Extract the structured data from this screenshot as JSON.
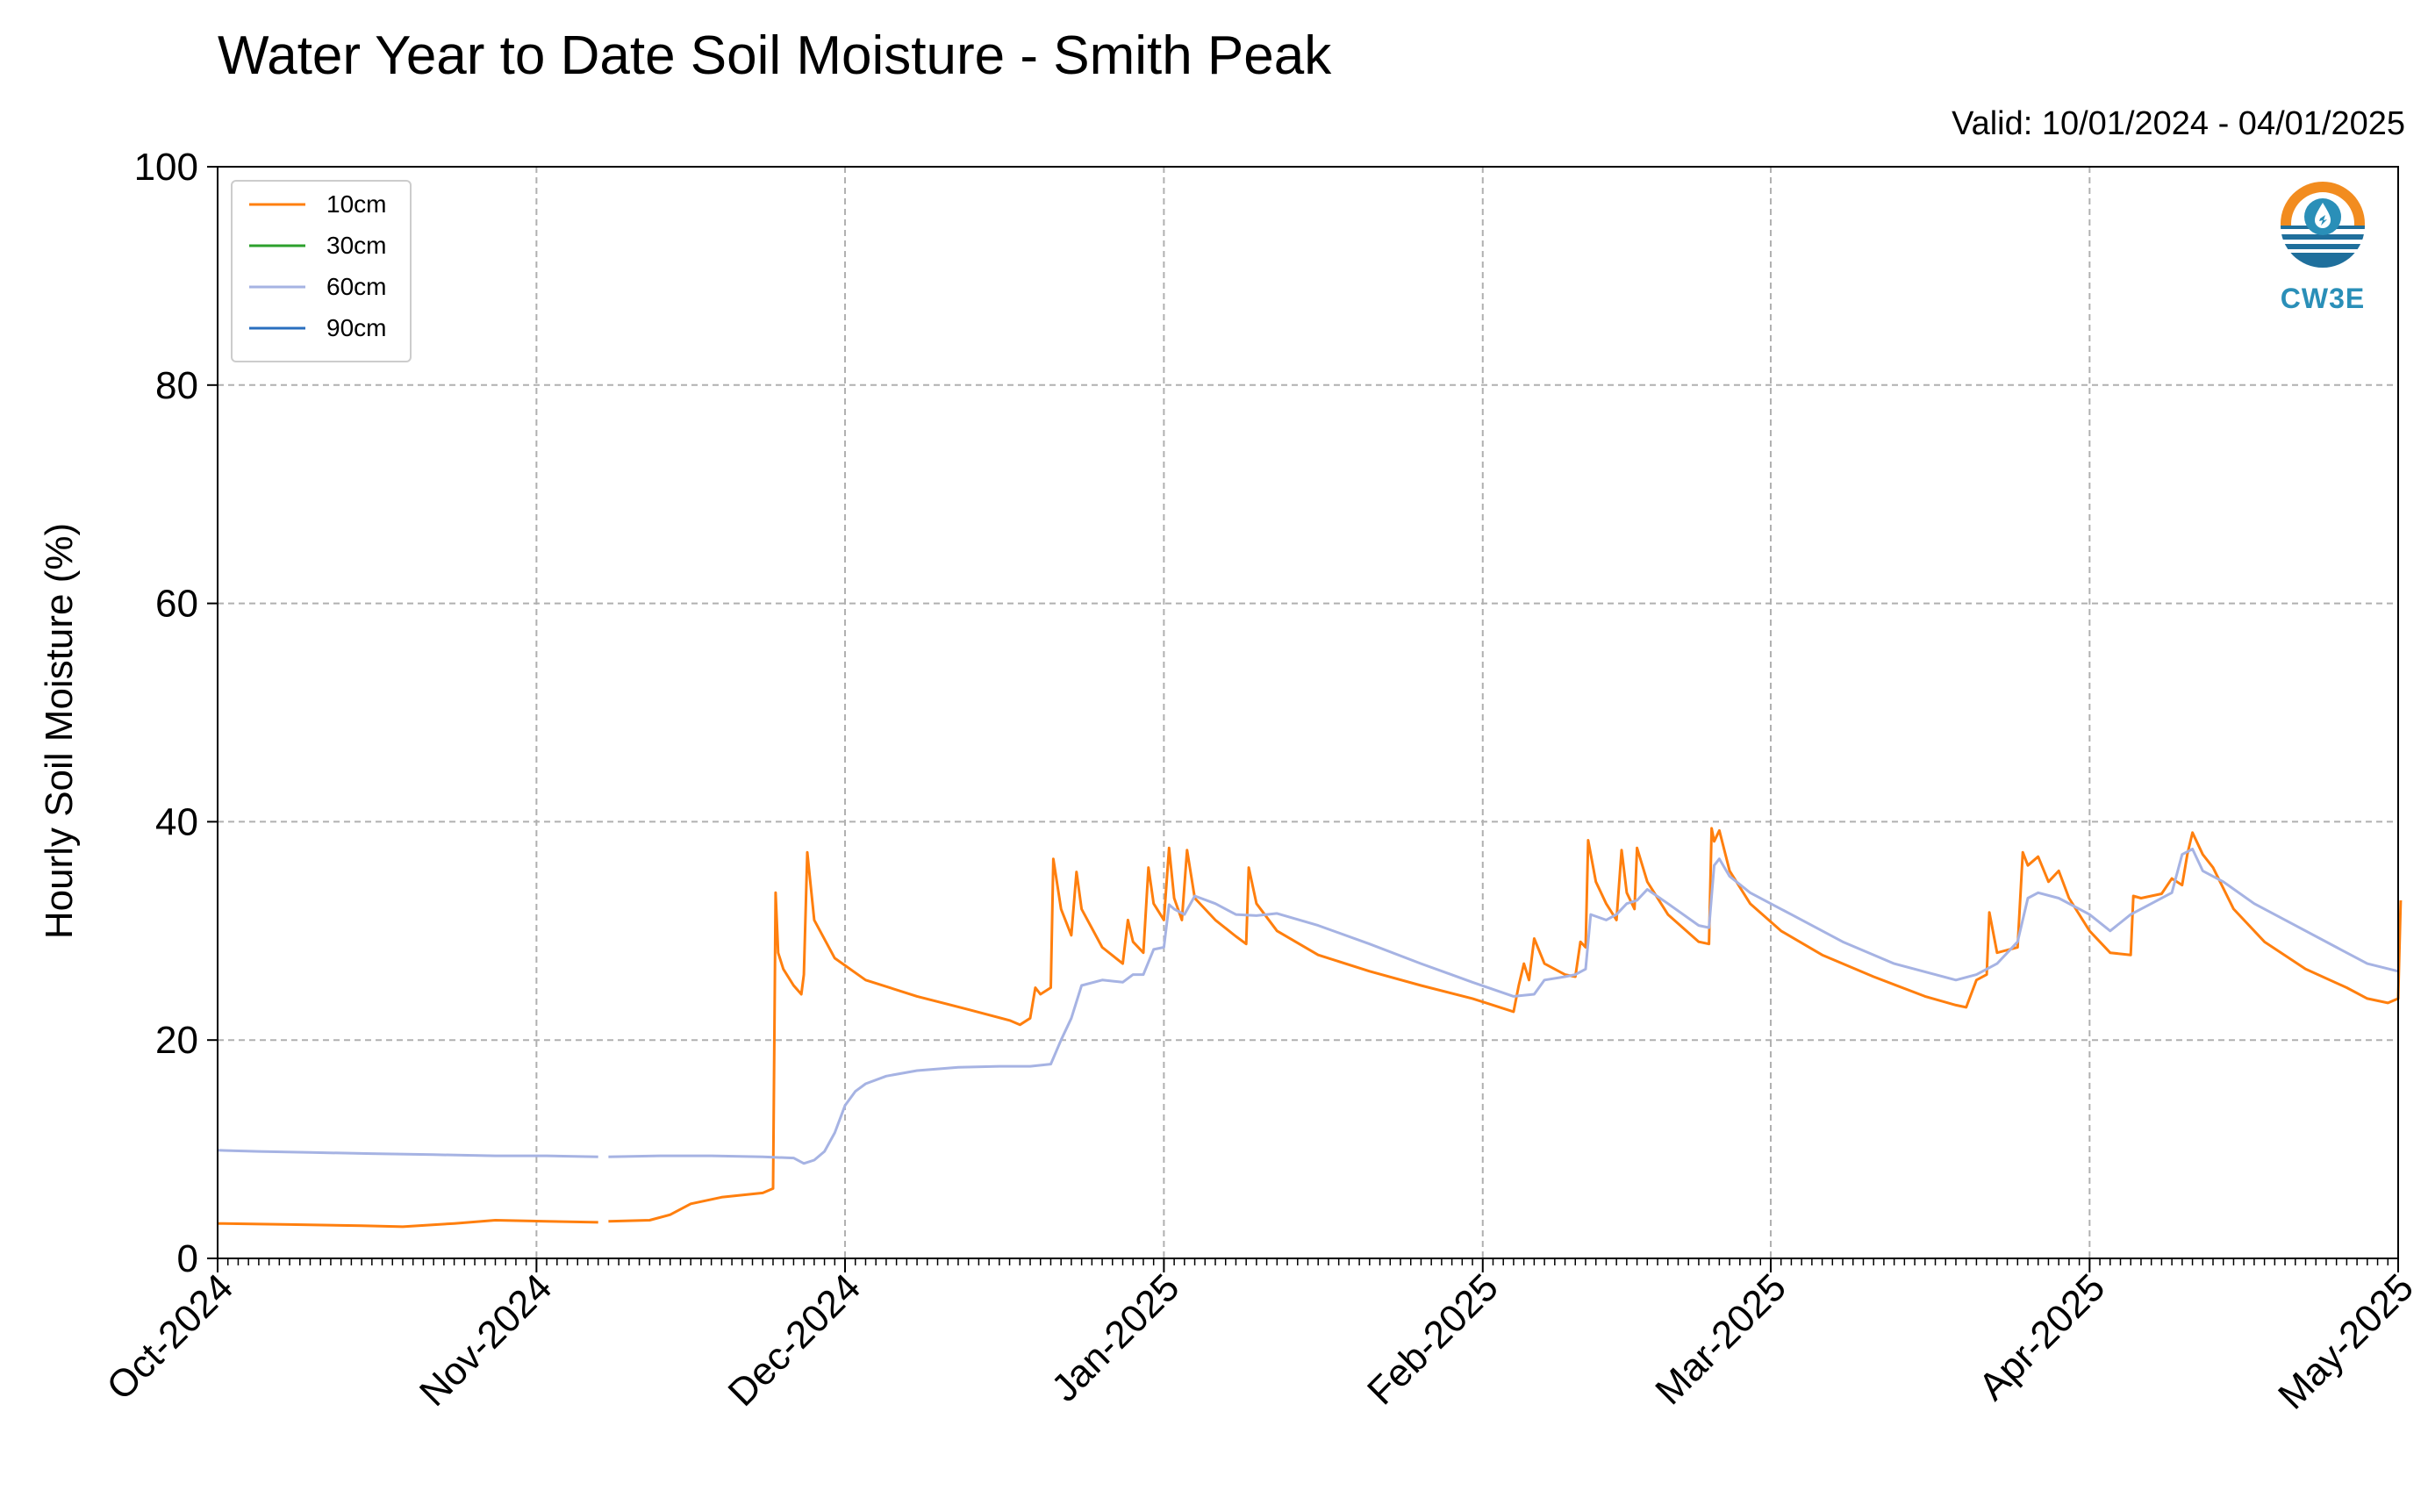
{
  "header": {
    "title": "Water Year to Date Soil Moisture - Smith Peak",
    "valid": "Valid: 10/01/2024 - 04/01/2025"
  },
  "logo": {
    "text": "CW3E"
  },
  "chart_data": {
    "type": "line",
    "title": "Water Year to Date Soil Moisture - Smith Peak",
    "ylabel": "Hourly Soil Moisture (%)",
    "xlabel": "",
    "ylim": [
      0,
      100
    ],
    "yticks": [
      "0",
      "20",
      "40",
      "60",
      "80",
      "100"
    ],
    "xlim": [
      "2024-10-01",
      "2025-05-01"
    ],
    "xticks": [
      {
        "date": "2024-10-01",
        "label": "Oct-2024"
      },
      {
        "date": "2024-11-01",
        "label": "Nov-2024"
      },
      {
        "date": "2024-12-01",
        "label": "Dec-2024"
      },
      {
        "date": "2025-01-01",
        "label": "Jan-2025"
      },
      {
        "date": "2025-02-01",
        "label": "Feb-2025"
      },
      {
        "date": "2025-03-01",
        "label": "Mar-2025"
      },
      {
        "date": "2025-04-01",
        "label": "Apr-2025"
      },
      {
        "date": "2025-05-01",
        "label": "May-2025"
      }
    ],
    "grid": true,
    "legend_position": "top-left",
    "series": [
      {
        "name": "10cm",
        "color": "#ff7f0e",
        "segments": [
          [
            [
              "2024-10-01",
              3.2
            ],
            [
              "2024-10-08",
              3.1
            ],
            [
              "2024-10-15",
              3.0
            ],
            [
              "2024-10-19",
              2.9
            ],
            [
              "2024-10-24",
              3.2
            ],
            [
              "2024-10-28",
              3.5
            ],
            [
              "2024-11-02",
              3.4
            ],
            [
              "2024-11-07",
              3.3
            ]
          ],
          [
            [
              "2024-11-08",
              3.4
            ],
            [
              "2024-11-12",
              3.5
            ],
            [
              "2024-11-14",
              4.0
            ],
            [
              "2024-11-16",
              5.0
            ],
            [
              "2024-11-19",
              5.6
            ],
            [
              "2024-11-23",
              6.0
            ],
            [
              "2024-11-24",
              6.4
            ],
            [
              "2024-11-24 06:00",
              33.5
            ],
            [
              "2024-11-24 12:00",
              28.0
            ],
            [
              "2024-11-25",
              26.5
            ],
            [
              "2024-11-26",
              25.0
            ],
            [
              "2024-11-26 18:00",
              24.2
            ],
            [
              "2024-11-27",
              26.0
            ],
            [
              "2024-11-27 08:00",
              37.2
            ],
            [
              "2024-11-28",
              31.0
            ],
            [
              "2024-11-30",
              27.5
            ],
            [
              "2024-12-03",
              25.5
            ],
            [
              "2024-12-08",
              24.0
            ],
            [
              "2024-12-13",
              22.8
            ],
            [
              "2024-12-17",
              21.8
            ],
            [
              "2024-12-18",
              21.4
            ],
            [
              "2024-12-19",
              22.0
            ],
            [
              "2024-12-19 12:00",
              24.8
            ],
            [
              "2024-12-20",
              24.2
            ],
            [
              "2024-12-21",
              24.8
            ],
            [
              "2024-12-21 06:00",
              36.6
            ],
            [
              "2024-12-22",
              32.0
            ],
            [
              "2024-12-23",
              29.6
            ],
            [
              "2024-12-23 12:00",
              35.4
            ],
            [
              "2024-12-24",
              32.0
            ],
            [
              "2024-12-26",
              28.5
            ],
            [
              "2024-12-28",
              27.0
            ],
            [
              "2024-12-28 12:00",
              31.0
            ],
            [
              "2024-12-29",
              29.0
            ],
            [
              "2024-12-30",
              28.0
            ],
            [
              "2024-12-30 12:00",
              35.8
            ],
            [
              "2024-12-31",
              32.5
            ],
            [
              "2025-01-01",
              31.0
            ],
            [
              "2025-01-01 12:00",
              37.6
            ],
            [
              "2025-01-02",
              33.0
            ],
            [
              "2025-01-02 18:00",
              31.0
            ],
            [
              "2025-01-03 06:00",
              37.4
            ],
            [
              "2025-01-04",
              33.0
            ],
            [
              "2025-01-06",
              31.0
            ],
            [
              "2025-01-08",
              29.5
            ],
            [
              "2025-01-09",
              28.8
            ],
            [
              "2025-01-09 06:00",
              35.8
            ],
            [
              "2025-01-10",
              32.5
            ],
            [
              "2025-01-12",
              30.0
            ],
            [
              "2025-01-16",
              27.8
            ],
            [
              "2025-01-21",
              26.3
            ],
            [
              "2025-01-26",
              25.0
            ],
            [
              "2025-01-31",
              23.8
            ],
            [
              "2025-02-04",
              22.6
            ],
            [
              "2025-02-04 12:00",
              25.0
            ],
            [
              "2025-02-05",
              27.0
            ],
            [
              "2025-02-05 12:00",
              25.5
            ],
            [
              "2025-02-06",
              29.3
            ],
            [
              "2025-02-07",
              27.0
            ],
            [
              "2025-02-09",
              26.0
            ],
            [
              "2025-02-10",
              25.8
            ],
            [
              "2025-02-10 12:00",
              29.0
            ],
            [
              "2025-02-11",
              28.5
            ],
            [
              "2025-02-11 06:00",
              38.3
            ],
            [
              "2025-02-12",
              34.5
            ],
            [
              "2025-02-13",
              32.5
            ],
            [
              "2025-02-14",
              31.0
            ],
            [
              "2025-02-14 12:00",
              37.4
            ],
            [
              "2025-02-15",
              33.5
            ],
            [
              "2025-02-15 18:00",
              32.0
            ],
            [
              "2025-02-16",
              37.6
            ],
            [
              "2025-02-17",
              34.5
            ],
            [
              "2025-02-19",
              31.5
            ],
            [
              "2025-02-22",
              29.0
            ],
            [
              "2025-02-23",
              28.8
            ],
            [
              "2025-02-23 06:00",
              39.4
            ],
            [
              "2025-02-23 12:00",
              38.2
            ],
            [
              "2025-02-24",
              39.2
            ],
            [
              "2025-02-25",
              35.5
            ],
            [
              "2025-02-27",
              32.5
            ],
            [
              "2025-03-02",
              30.0
            ],
            [
              "2025-03-06",
              27.8
            ],
            [
              "2025-03-11",
              25.8
            ],
            [
              "2025-03-16",
              24.0
            ],
            [
              "2025-03-19",
              23.2
            ],
            [
              "2025-03-20",
              23.0
            ],
            [
              "2025-03-21",
              25.5
            ],
            [
              "2025-03-22",
              26.0
            ],
            [
              "2025-03-22 06:00",
              31.7
            ],
            [
              "2025-03-23",
              28.0
            ],
            [
              "2025-03-25",
              28.5
            ],
            [
              "2025-03-25 12:00",
              37.2
            ],
            [
              "2025-03-26",
              36.0
            ],
            [
              "2025-03-27",
              36.8
            ],
            [
              "2025-03-28",
              34.5
            ],
            [
              "2025-03-29",
              35.5
            ],
            [
              "2025-03-30",
              33.0
            ],
            [
              "2025-04-01",
              30.0
            ],
            [
              "2025-04-03",
              28.0
            ],
            [
              "2025-04-05",
              27.8
            ],
            [
              "2025-04-05 06:00",
              33.2
            ],
            [
              "2025-04-06",
              33.0
            ],
            [
              "2025-04-08",
              33.4
            ],
            [
              "2025-04-09",
              34.8
            ],
            [
              "2025-04-10",
              34.2
            ],
            [
              "2025-04-10 12:00",
              37.0
            ],
            [
              "2025-04-11",
              39.0
            ],
            [
              "2025-04-12",
              37.0
            ],
            [
              "2025-04-13",
              35.8
            ],
            [
              "2025-04-15",
              32.0
            ],
            [
              "2025-04-18",
              29.0
            ],
            [
              "2025-04-22",
              26.5
            ],
            [
              "2025-04-26",
              24.8
            ],
            [
              "2025-04-28",
              23.8
            ],
            [
              "2025-04-30",
              23.4
            ],
            [
              "2025-05-01",
              23.8
            ],
            [
              "2025-05-01 06:00",
              32.8
            ]
          ]
        ]
      },
      {
        "name": "30cm",
        "color": "#2ca02c",
        "segments": []
      },
      {
        "name": "60cm",
        "color": "#a6b3e3",
        "segments": [
          [
            [
              "2024-10-01",
              9.9
            ],
            [
              "2024-10-05",
              9.8
            ],
            [
              "2024-10-10",
              9.7
            ],
            [
              "2024-10-16",
              9.6
            ],
            [
              "2024-10-22",
              9.5
            ],
            [
              "2024-10-28",
              9.4
            ],
            [
              "2024-11-02",
              9.4
            ],
            [
              "2024-11-07",
              9.3
            ]
          ],
          [
            [
              "2024-11-08",
              9.3
            ],
            [
              "2024-11-13",
              9.4
            ],
            [
              "2024-11-18",
              9.4
            ],
            [
              "2024-11-23",
              9.3
            ],
            [
              "2024-11-26",
              9.2
            ],
            [
              "2024-11-27",
              8.7
            ],
            [
              "2024-11-28",
              9.0
            ],
            [
              "2024-11-29",
              9.8
            ],
            [
              "2024-11-30",
              11.5
            ],
            [
              "2024-12-01",
              14.0
            ],
            [
              "2024-12-02",
              15.3
            ],
            [
              "2024-12-03",
              16.0
            ],
            [
              "2024-12-05",
              16.7
            ],
            [
              "2024-12-08",
              17.2
            ],
            [
              "2024-12-12",
              17.5
            ],
            [
              "2024-12-16",
              17.6
            ],
            [
              "2024-12-19",
              17.6
            ],
            [
              "2024-12-21",
              17.8
            ],
            [
              "2024-12-22",
              20.0
            ],
            [
              "2024-12-23",
              22.0
            ],
            [
              "2024-12-24",
              25.0
            ],
            [
              "2024-12-26",
              25.5
            ],
            [
              "2024-12-28",
              25.3
            ],
            [
              "2024-12-29",
              26.0
            ],
            [
              "2024-12-30",
              26.0
            ],
            [
              "2024-12-31",
              28.3
            ],
            [
              "2025-01-01",
              28.5
            ],
            [
              "2025-01-01 12:00",
              32.4
            ],
            [
              "2025-01-02",
              32.0
            ],
            [
              "2025-01-03",
              31.5
            ],
            [
              "2025-01-04",
              33.2
            ],
            [
              "2025-01-06",
              32.5
            ],
            [
              "2025-01-08",
              31.5
            ],
            [
              "2025-01-10",
              31.4
            ],
            [
              "2025-01-12",
              31.6
            ],
            [
              "2025-01-16",
              30.5
            ],
            [
              "2025-01-21",
              28.8
            ],
            [
              "2025-01-26",
              27.0
            ],
            [
              "2025-01-31",
              25.3
            ],
            [
              "2025-02-04",
              24.0
            ],
            [
              "2025-02-06",
              24.2
            ],
            [
              "2025-02-07",
              25.5
            ],
            [
              "2025-02-09",
              25.8
            ],
            [
              "2025-02-10",
              26.0
            ],
            [
              "2025-02-11",
              26.5
            ],
            [
              "2025-02-11 12:00",
              31.5
            ],
            [
              "2025-02-13",
              31.0
            ],
            [
              "2025-02-14",
              31.5
            ],
            [
              "2025-02-15",
              32.5
            ],
            [
              "2025-02-16",
              32.8
            ],
            [
              "2025-02-17",
              33.8
            ],
            [
              "2025-02-19",
              32.5
            ],
            [
              "2025-02-22",
              30.5
            ],
            [
              "2025-02-23",
              30.3
            ],
            [
              "2025-02-23 12:00",
              36.0
            ],
            [
              "2025-02-24",
              36.6
            ],
            [
              "2025-02-25",
              35.0
            ],
            [
              "2025-02-27",
              33.5
            ],
            [
              "2025-03-03",
              31.5
            ],
            [
              "2025-03-08",
              29.0
            ],
            [
              "2025-03-13",
              27.0
            ],
            [
              "2025-03-17",
              26.0
            ],
            [
              "2025-03-19",
              25.5
            ],
            [
              "2025-03-21",
              26.0
            ],
            [
              "2025-03-23",
              27.0
            ],
            [
              "2025-03-24",
              28.0
            ],
            [
              "2025-03-25",
              29.0
            ],
            [
              "2025-03-26",
              33.0
            ],
            [
              "2025-03-27",
              33.5
            ],
            [
              "2025-03-29",
              33.0
            ],
            [
              "2025-04-01",
              31.5
            ],
            [
              "2025-04-03",
              30.0
            ],
            [
              "2025-04-05",
              31.5
            ],
            [
              "2025-04-07",
              32.5
            ],
            [
              "2025-04-09",
              33.5
            ],
            [
              "2025-04-10",
              37.0
            ],
            [
              "2025-04-11",
              37.5
            ],
            [
              "2025-04-12",
              35.5
            ],
            [
              "2025-04-14",
              34.5
            ],
            [
              "2025-04-17",
              32.5
            ],
            [
              "2025-04-21",
              30.5
            ],
            [
              "2025-04-25",
              28.5
            ],
            [
              "2025-04-28",
              27.0
            ],
            [
              "2025-05-01",
              26.3
            ]
          ]
        ]
      },
      {
        "name": "90cm",
        "color": "#2a6fbf",
        "segments": []
      }
    ]
  }
}
